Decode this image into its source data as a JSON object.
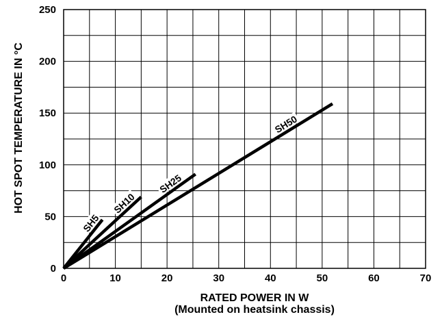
{
  "chart_data": {
    "type": "line",
    "xlabel": "RATED POWER IN W",
    "xlabel_sub": "(Mounted on heatsink chassis)",
    "ylabel": "HOT SPOT TEMPERATURE IN °C",
    "xlim": [
      0,
      70
    ],
    "ylim": [
      0,
      250
    ],
    "x_ticks": [
      0,
      10,
      20,
      30,
      40,
      50,
      60,
      70
    ],
    "y_ticks": [
      0,
      50,
      100,
      150,
      200,
      250
    ],
    "x_minor_step": 5,
    "y_minor_step": 25,
    "grid": true,
    "series": [
      {
        "name": "SH5",
        "x": [
          0,
          7.5
        ],
        "y": [
          0,
          47
        ]
      },
      {
        "name": "SH10",
        "x": [
          0,
          15
        ],
        "y": [
          0,
          69
        ]
      },
      {
        "name": "SH25",
        "x": [
          0,
          25.5
        ],
        "y": [
          0,
          91
        ]
      },
      {
        "name": "SH50",
        "x": [
          0,
          52
        ],
        "y": [
          0,
          159
        ]
      }
    ]
  }
}
